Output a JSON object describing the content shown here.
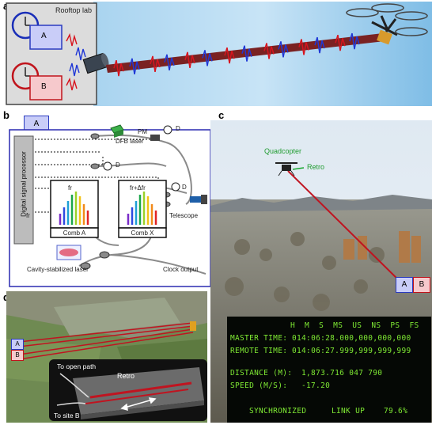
{
  "panel_a": {
    "letter": "a",
    "title": "Rooftop lab",
    "box_a": "A",
    "box_b": "B",
    "colors": {
      "sky": "#8fc6ea",
      "beam": "#7a2222",
      "pulse_red": "#d8141e",
      "pulse_blue": "#1f37d6"
    }
  },
  "panel_b": {
    "letter": "b",
    "header_box": "A",
    "dsp_label": "Digital signal processor",
    "dfb_label": "DFB laser",
    "pm_label": "PM",
    "detector_labels": [
      "D",
      "D",
      "D"
    ],
    "comb_a_label": "Comb A",
    "comb_x_label": "Comb X",
    "fr_label": "fr",
    "fr_dfr_label": "fr+Δfr",
    "fr_side_label": "fr",
    "telescope_label": "Telescope",
    "cavity_label": "Cavity-stabilized laser",
    "clock_label": "Clock output"
  },
  "panel_c": {
    "letter": "c",
    "quadcopter_label": "Quadcopter",
    "retro_label": "Retro",
    "box_a": "A",
    "box_b": "B",
    "console": {
      "header": "H  M  S  MS  US  NS  PS  FS",
      "master_label": "MASTER TIME:",
      "master_value": "014:06:28.000,000,000,000",
      "remote_label": "REMOTE TIME:",
      "remote_value": "014:06:27.999,999,999,999",
      "distance_label": "DISTANCE (M):",
      "distance_value": "1,873.716 047 790",
      "speed_label": "SPEED (M/S):",
      "speed_value": "-17.20",
      "status_sync": "SYNCHRONIZED",
      "status_link": "LINK UP",
      "status_pct": "79.6%"
    }
  },
  "panel_d": {
    "letter": "d",
    "box_a": "A",
    "box_b": "B",
    "open_path_label": "To open path",
    "retro_label": "Retro",
    "site_b_label": "To site B"
  }
}
